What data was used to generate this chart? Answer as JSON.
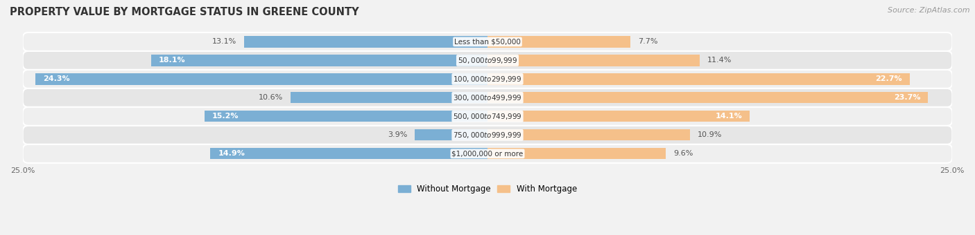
{
  "title": "PROPERTY VALUE BY MORTGAGE STATUS IN GREENE COUNTY",
  "source": "Source: ZipAtlas.com",
  "categories": [
    "Less than $50,000",
    "$50,000 to $99,999",
    "$100,000 to $299,999",
    "$300,000 to $499,999",
    "$500,000 to $749,999",
    "$750,000 to $999,999",
    "$1,000,000 or more"
  ],
  "without_mortgage": [
    13.1,
    18.1,
    24.3,
    10.6,
    15.2,
    3.9,
    14.9
  ],
  "with_mortgage": [
    7.7,
    11.4,
    22.7,
    23.7,
    14.1,
    10.9,
    9.6
  ],
  "without_mortgage_color": "#7bafd4",
  "with_mortgage_color": "#f5c08a",
  "bar_height": 0.6,
  "row_bg_colors": [
    "#efefef",
    "#e6e6e6"
  ],
  "xlim": 25.0,
  "title_fontsize": 10.5,
  "label_fontsize": 8.0,
  "tick_fontsize": 8.0,
  "legend_fontsize": 8.5,
  "source_fontsize": 8.0,
  "inside_label_threshold": 14.0
}
